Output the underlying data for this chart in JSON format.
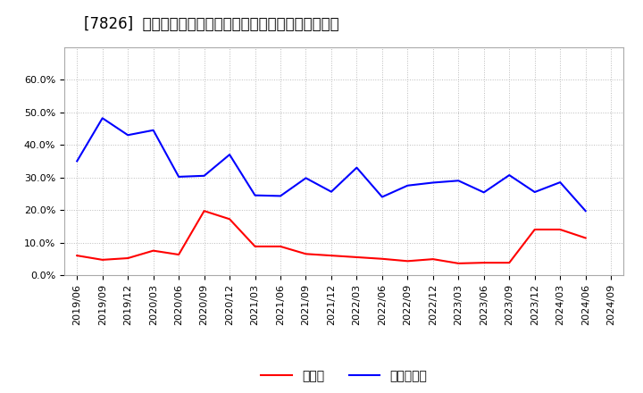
{
  "title": "[7826]  現預金、有利子負債の総資産に対する比率の推移",
  "x_labels": [
    "2019/06",
    "2019/09",
    "2019/12",
    "2020/03",
    "2020/06",
    "2020/09",
    "2020/12",
    "2021/03",
    "2021/06",
    "2021/09",
    "2021/12",
    "2022/03",
    "2022/06",
    "2022/09",
    "2022/12",
    "2023/03",
    "2023/06",
    "2023/09",
    "2023/12",
    "2024/03",
    "2024/06",
    "2024/09"
  ],
  "cash_values": [
    0.06,
    0.047,
    0.052,
    0.075,
    0.063,
    0.197,
    0.172,
    0.088,
    0.088,
    0.065,
    0.06,
    0.055,
    0.05,
    0.043,
    0.049,
    0.036,
    0.038,
    0.038,
    0.14,
    0.14,
    0.114,
    null
  ],
  "debt_values": [
    0.35,
    0.482,
    0.43,
    0.445,
    0.302,
    0.305,
    0.37,
    0.245,
    0.243,
    0.298,
    0.256,
    0.33,
    0.24,
    0.275,
    0.284,
    0.29,
    0.254,
    0.307,
    0.255,
    0.285,
    0.197,
    null
  ],
  "cash_color": "#ff0000",
  "debt_color": "#0000ff",
  "background_color": "#ffffff",
  "plot_bg_color": "#ffffff",
  "grid_color": "#bbbbbb",
  "ylim": [
    0.0,
    0.7
  ],
  "yticks": [
    0.0,
    0.1,
    0.2,
    0.3,
    0.4,
    0.5,
    0.6
  ],
  "legend_cash": "現預金",
  "legend_debt": "有利子負債",
  "title_fontsize": 12,
  "axis_fontsize": 8,
  "legend_fontsize": 10
}
